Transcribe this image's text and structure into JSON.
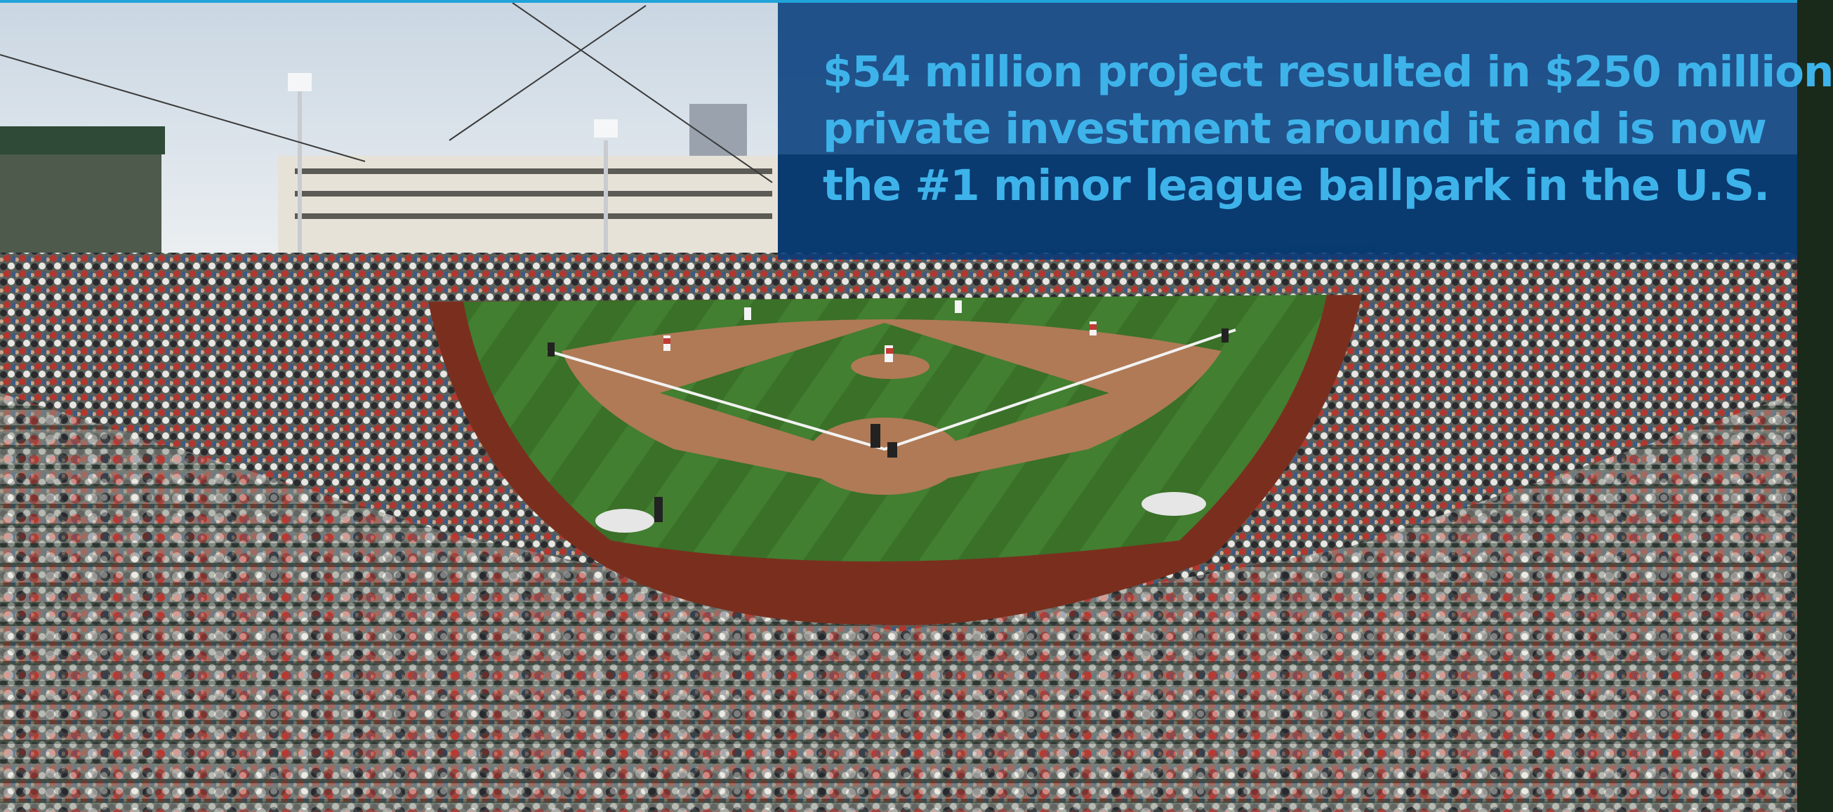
{
  "photo": {
    "subject": "baseball-stadium-panorama",
    "colors": {
      "accent_line": "#1fa3d9",
      "overlay": "#043a7a",
      "headline_text": "#3db3ea",
      "grass": "#3f7a2e",
      "infield_dirt": "#b07a56",
      "warning_track": "#7a2f1e",
      "sky": "#dfe7ee"
    }
  },
  "headline": {
    "line1": "$54 million project resulted in $250 million",
    "line2": "private investment around it and is now",
    "line3": "the #1 minor league ballpark in the U.S."
  }
}
